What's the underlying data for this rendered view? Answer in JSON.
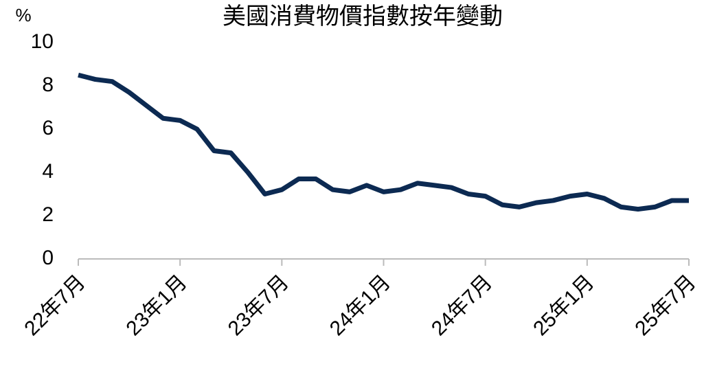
{
  "chart_data": {
    "type": "line",
    "title": "美國消費物價指數按年變動",
    "y_label": "%",
    "categories": [
      "22年7月",
      null,
      null,
      null,
      null,
      null,
      "23年1月",
      null,
      null,
      null,
      null,
      null,
      "23年7月",
      null,
      null,
      null,
      null,
      null,
      "24年1月",
      null,
      null,
      null,
      null,
      null,
      "24年7月",
      null,
      null,
      null,
      null,
      null,
      "25年1月",
      null,
      null,
      null,
      null,
      null,
      "25年7月"
    ],
    "values": [
      8.5,
      8.3,
      8.2,
      7.7,
      7.1,
      6.5,
      6.4,
      6.0,
      5.0,
      4.9,
      4.0,
      3.0,
      3.2,
      3.7,
      3.7,
      3.2,
      3.1,
      3.4,
      3.1,
      3.2,
      3.5,
      3.4,
      3.3,
      3.0,
      2.9,
      2.5,
      2.4,
      2.6,
      2.7,
      2.9,
      3.0,
      2.8,
      2.4,
      2.3,
      2.4,
      2.7,
      2.7
    ],
    "color": "#0c2a52",
    "ylim": [
      0,
      10
    ],
    "yticks": [
      0,
      2,
      4,
      6,
      8,
      10
    ],
    "grid": false
  }
}
